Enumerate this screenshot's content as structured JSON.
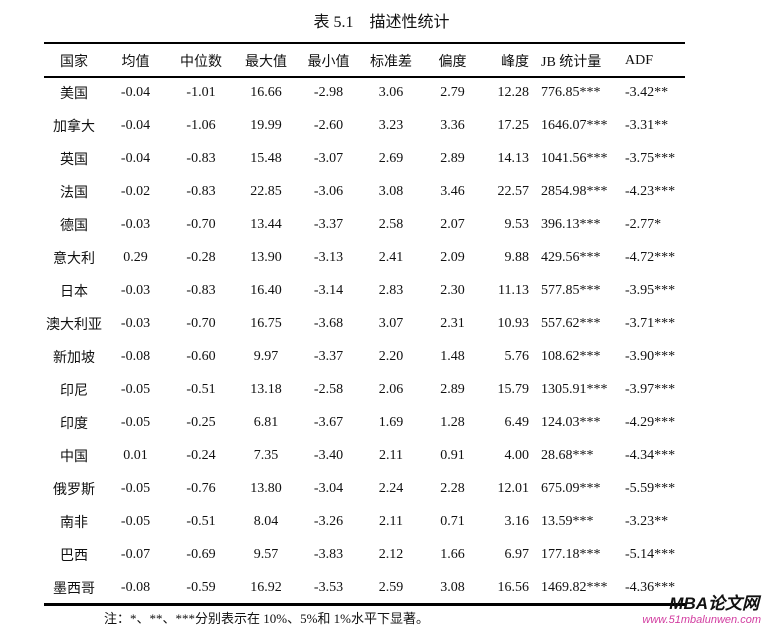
{
  "caption": {
    "label": "表 5.1",
    "text": "描述性统计"
  },
  "table": {
    "headers": [
      "国家",
      "均值",
      "中位数",
      "最大值",
      "最小值",
      "标准差",
      "偏度",
      "峰度",
      "JB 统计量",
      "ADF"
    ],
    "rows": [
      [
        "美国",
        "-0.04",
        "-1.01",
        "16.66",
        "-2.98",
        "3.06",
        "2.79",
        "12.28",
        "776.85***",
        "-3.42**"
      ],
      [
        "加拿大",
        "-0.04",
        "-1.06",
        "19.99",
        "-2.60",
        "3.23",
        "3.36",
        "17.25",
        "1646.07***",
        "-3.31**"
      ],
      [
        "英国",
        "-0.04",
        "-0.83",
        "15.48",
        "-3.07",
        "2.69",
        "2.89",
        "14.13",
        "1041.56***",
        "-3.75***"
      ],
      [
        "法国",
        "-0.02",
        "-0.83",
        "22.85",
        "-3.06",
        "3.08",
        "3.46",
        "22.57",
        "2854.98***",
        "-4.23***"
      ],
      [
        "德国",
        "-0.03",
        "-0.70",
        "13.44",
        "-3.37",
        "2.58",
        "2.07",
        "9.53",
        "396.13***",
        "-2.77*"
      ],
      [
        "意大利",
        "0.29",
        "-0.28",
        "13.90",
        "-3.13",
        "2.41",
        "2.09",
        "9.88",
        "429.56***",
        "-4.72***"
      ],
      [
        "日本",
        "-0.03",
        "-0.83",
        "16.40",
        "-3.14",
        "2.83",
        "2.30",
        "11.13",
        "577.85***",
        "-3.95***"
      ],
      [
        "澳大利亚",
        "-0.03",
        "-0.70",
        "16.75",
        "-3.68",
        "3.07",
        "2.31",
        "10.93",
        "557.62***",
        "-3.71***"
      ],
      [
        "新加坡",
        "-0.08",
        "-0.60",
        "9.97",
        "-3.37",
        "2.20",
        "1.48",
        "5.76",
        "108.62***",
        "-3.90***"
      ],
      [
        "印尼",
        "-0.05",
        "-0.51",
        "13.18",
        "-2.58",
        "2.06",
        "2.89",
        "15.79",
        "1305.91***",
        "-3.97***"
      ],
      [
        "印度",
        "-0.05",
        "-0.25",
        "6.81",
        "-3.67",
        "1.69",
        "1.28",
        "6.49",
        "124.03***",
        "-4.29***"
      ],
      [
        "中国",
        "0.01",
        "-0.24",
        "7.35",
        "-3.40",
        "2.11",
        "0.91",
        "4.00",
        "28.68***",
        "-4.34***"
      ],
      [
        "俄罗斯",
        "-0.05",
        "-0.76",
        "13.80",
        "-3.04",
        "2.24",
        "2.28",
        "12.01",
        "675.09***",
        "-5.59***"
      ],
      [
        "南非",
        "-0.05",
        "-0.51",
        "8.04",
        "-3.26",
        "2.11",
        "0.71",
        "3.16",
        "13.59***",
        "-3.23**"
      ],
      [
        "巴西",
        "-0.07",
        "-0.69",
        "9.57",
        "-3.83",
        "2.12",
        "1.66",
        "6.97",
        "177.18***",
        "-5.14***"
      ],
      [
        "墨西哥",
        "-0.08",
        "-0.59",
        "16.92",
        "-3.53",
        "2.59",
        "3.08",
        "16.56",
        "1469.82***",
        "-4.36***"
      ]
    ]
  },
  "note": "注：*、**、***分别表示在 10%、5%和 1%水平下显著。",
  "watermark": {
    "logo": "MBA论文网",
    "url": "www.51mbalunwen.com"
  }
}
